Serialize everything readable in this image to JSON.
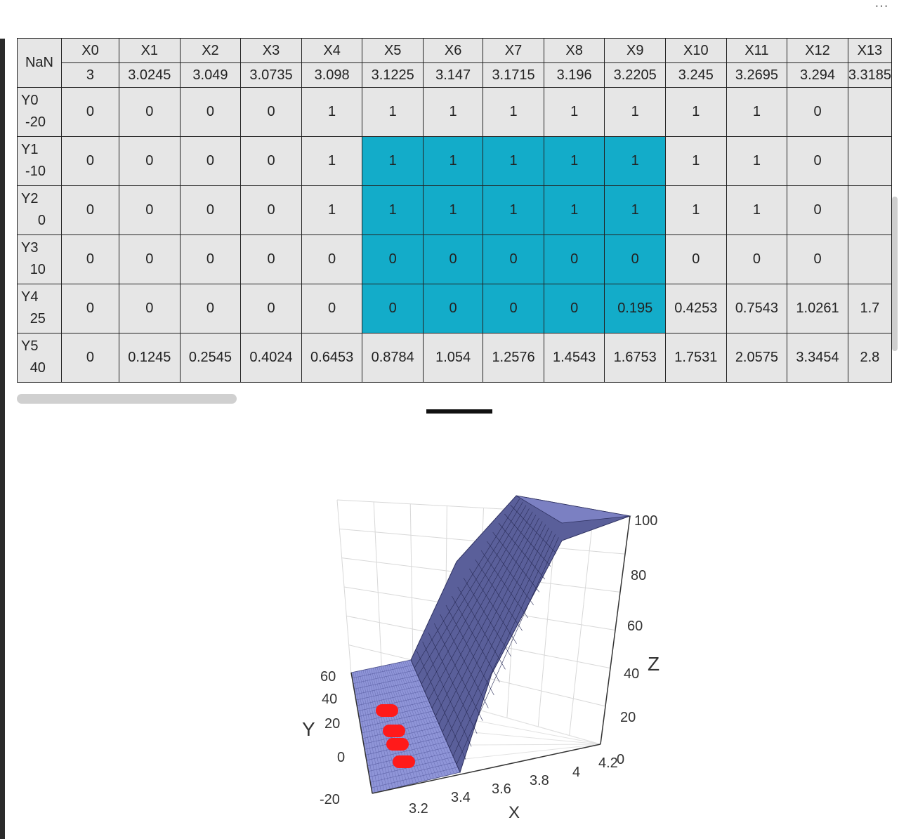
{
  "table": {
    "corner": "NaN",
    "columns": [
      {
        "name": "X0",
        "value": "3"
      },
      {
        "name": "X1",
        "value": "3.0245"
      },
      {
        "name": "X2",
        "value": "3.049"
      },
      {
        "name": "X3",
        "value": "3.0735"
      },
      {
        "name": "X4",
        "value": "3.098"
      },
      {
        "name": "X5",
        "value": "3.1225"
      },
      {
        "name": "X6",
        "value": "3.147"
      },
      {
        "name": "X7",
        "value": "3.1715"
      },
      {
        "name": "X8",
        "value": "3.196"
      },
      {
        "name": "X9",
        "value": "3.2205"
      },
      {
        "name": "X10",
        "value": "3.245"
      },
      {
        "name": "X11",
        "value": "3.2695"
      },
      {
        "name": "X12",
        "value": "3.294"
      },
      {
        "name": "X13",
        "value": "3.3185"
      }
    ],
    "rows": [
      {
        "name": "Y0",
        "value": "-20",
        "cells": [
          "0",
          "0",
          "0",
          "0",
          "1",
          "1",
          "1",
          "1",
          "1",
          "1",
          "1",
          "1",
          "0",
          ""
        ]
      },
      {
        "name": "Y1",
        "value": "-10",
        "cells": [
          "0",
          "0",
          "0",
          "0",
          "1",
          "1",
          "1",
          "1",
          "1",
          "1",
          "1",
          "1",
          "0",
          ""
        ]
      },
      {
        "name": "Y2",
        "value": "0",
        "cells": [
          "0",
          "0",
          "0",
          "0",
          "1",
          "1",
          "1",
          "1",
          "1",
          "1",
          "1",
          "1",
          "0",
          ""
        ]
      },
      {
        "name": "Y3",
        "value": "10",
        "cells": [
          "0",
          "0",
          "0",
          "0",
          "0",
          "0",
          "0",
          "0",
          "0",
          "0",
          "0",
          "0",
          "0",
          ""
        ]
      },
      {
        "name": "Y4",
        "value": "25",
        "cells": [
          "0",
          "0",
          "0",
          "0",
          "0",
          "0",
          "0",
          "0",
          "0",
          "0.195",
          "0.4253",
          "0.7543",
          "1.0261",
          "1.7"
        ]
      },
      {
        "name": "Y5",
        "value": "40",
        "cells": [
          "0",
          "0.1245",
          "0.2545",
          "0.4024",
          "0.6453",
          "0.8784",
          "1.054",
          "1.2576",
          "1.4543",
          "1.6753",
          "1.7531",
          "2.0575",
          "3.3454",
          "2.8"
        ]
      }
    ],
    "highlight": {
      "rows": [
        1,
        4
      ],
      "cols": [
        5,
        9
      ],
      "color": "#13acc9"
    }
  },
  "plot": {
    "z_ticks": [
      "0",
      "20",
      "40",
      "60",
      "80",
      "100"
    ],
    "z_label": "Z",
    "y_ticks": [
      "-20",
      "0",
      "20",
      "40",
      "60"
    ],
    "y_label": "Y",
    "x_ticks": [
      "3.2",
      "3.4",
      "3.6",
      "3.8",
      "4",
      "4.2"
    ],
    "x_label": "X",
    "surface_color": "#5a5f9a",
    "marker_color": "#ff1a1a"
  }
}
